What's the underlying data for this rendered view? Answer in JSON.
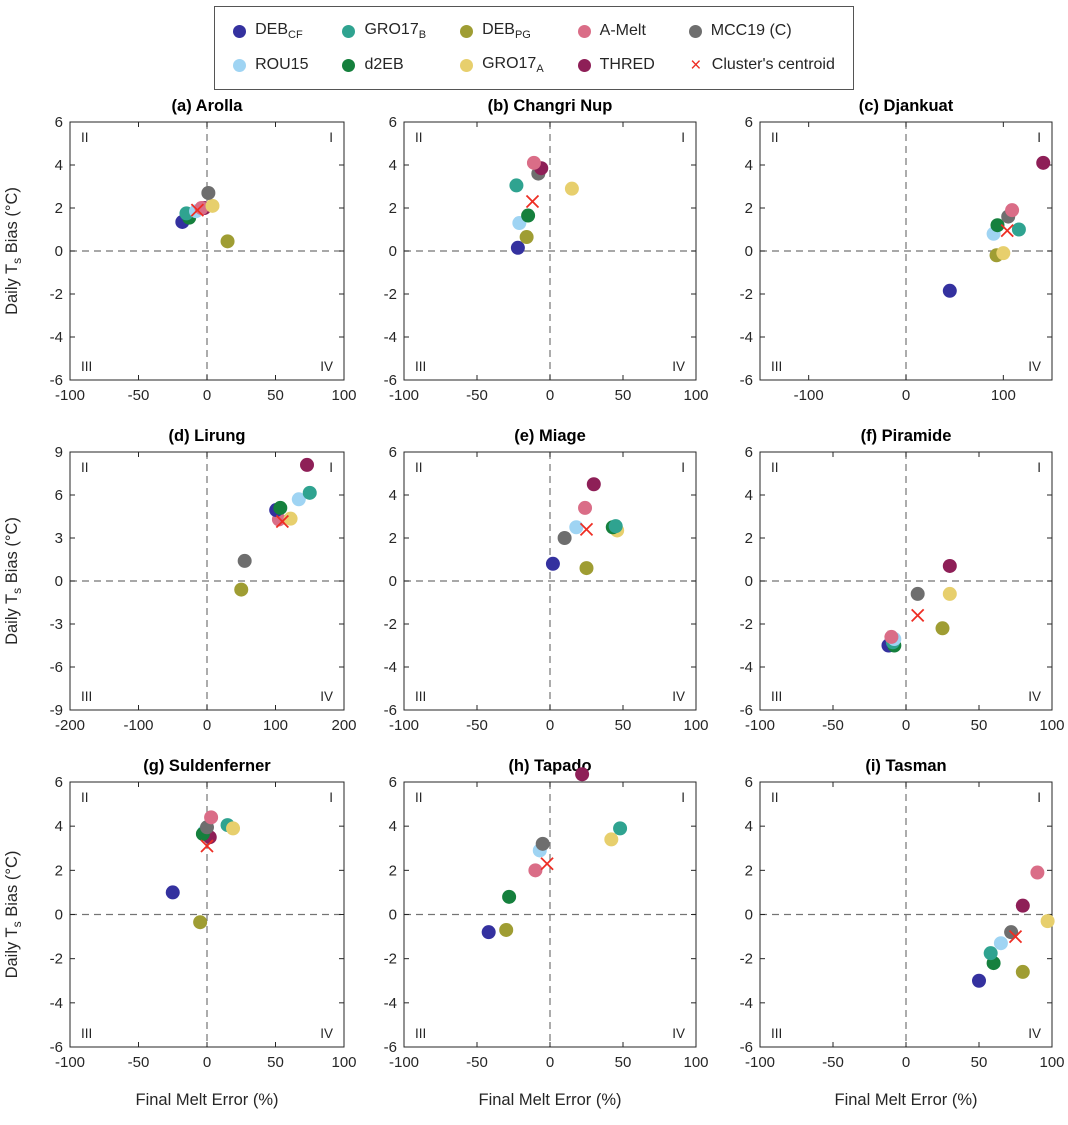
{
  "legend": {
    "items": [
      {
        "id": "DEB_CF",
        "label": "DEB",
        "sub": "CF",
        "color": "#34319f",
        "marker": "dot"
      },
      {
        "id": "ROU15",
        "label": "ROU15",
        "sub": "",
        "color": "#9fd4f3",
        "marker": "dot"
      },
      {
        "id": "GRO17_B",
        "label": "GRO17",
        "sub": "B",
        "color": "#2fa390",
        "marker": "dot"
      },
      {
        "id": "d2EB",
        "label": "d2EB",
        "sub": "",
        "color": "#15803d",
        "marker": "dot"
      },
      {
        "id": "DEB_PG",
        "label": "DEB",
        "sub": "PG",
        "color": "#9f9d33",
        "marker": "dot"
      },
      {
        "id": "GRO17_A",
        "label": "GRO17",
        "sub": "A",
        "color": "#e7cf6d",
        "marker": "dot"
      },
      {
        "id": "A-Melt",
        "label": "A-Melt",
        "sub": "",
        "color": "#da6d87",
        "marker": "dot"
      },
      {
        "id": "THRED",
        "label": "THRED",
        "sub": "",
        "color": "#8e1f57",
        "marker": "dot"
      },
      {
        "id": "MCC19 (C)",
        "label": "MCC19 (C)",
        "sub": "",
        "color": "#6e6e6e",
        "marker": "dot"
      },
      {
        "id": "centroid",
        "label": "Cluster's centroid",
        "sub": "",
        "color": "#ee2e24",
        "marker": "x"
      }
    ]
  },
  "axes": {
    "xlabel": "Final Melt Error (%)",
    "ylabel_parts": [
      "Daily T",
      "s",
      " Bias (°C)"
    ]
  },
  "chart_data": [
    {
      "type": "scatter",
      "title": "(a) Arolla",
      "xlim": [
        -100,
        100
      ],
      "ylim": [
        -6,
        6
      ],
      "xticks": [
        -100,
        -50,
        0,
        50,
        100
      ],
      "yticks": [
        -6,
        -4,
        -2,
        0,
        2,
        4,
        6
      ],
      "quadrant_labels": [
        "II",
        "I",
        "III",
        "IV"
      ],
      "show_ylabel": true,
      "show_xlabel": false,
      "points": [
        {
          "s": "DEB_CF",
          "x": -18,
          "y": 1.35
        },
        {
          "s": "d2EB",
          "x": -13,
          "y": 1.55
        },
        {
          "s": "GRO17_B",
          "x": -15,
          "y": 1.75
        },
        {
          "s": "ROU15",
          "x": -8,
          "y": 1.85
        },
        {
          "s": "THRED",
          "x": -2,
          "y": 2.0
        },
        {
          "s": "A-Melt",
          "x": -4,
          "y": 2.0
        },
        {
          "s": "GRO17_A",
          "x": 4,
          "y": 2.1
        },
        {
          "s": "MCC19 (C)",
          "x": 1,
          "y": 2.7
        },
        {
          "s": "DEB_PG",
          "x": 15,
          "y": 0.45
        }
      ],
      "centroid": {
        "x": -7,
        "y": 1.9
      }
    },
    {
      "type": "scatter",
      "title": "(b) Changri Nup",
      "xlim": [
        -100,
        100
      ],
      "ylim": [
        -6,
        6
      ],
      "xticks": [
        -100,
        -50,
        0,
        50,
        100
      ],
      "yticks": [
        -6,
        -4,
        -2,
        0,
        2,
        4,
        6
      ],
      "quadrant_labels": [
        "II",
        "I",
        "III",
        "IV"
      ],
      "show_ylabel": false,
      "show_xlabel": false,
      "points": [
        {
          "s": "DEB_CF",
          "x": -22,
          "y": 0.15
        },
        {
          "s": "DEB_PG",
          "x": -16,
          "y": 0.65
        },
        {
          "s": "ROU15",
          "x": -21,
          "y": 1.3
        },
        {
          "s": "d2EB",
          "x": -15,
          "y": 1.65
        },
        {
          "s": "GRO17_B",
          "x": -23,
          "y": 3.05
        },
        {
          "s": "MCC19 (C)",
          "x": -8,
          "y": 3.6
        },
        {
          "s": "THRED",
          "x": -6,
          "y": 3.85
        },
        {
          "s": "A-Melt",
          "x": -11,
          "y": 4.1
        },
        {
          "s": "GRO17_A",
          "x": 15,
          "y": 2.9
        }
      ],
      "centroid": {
        "x": -12,
        "y": 2.3
      }
    },
    {
      "type": "scatter",
      "title": "(c) Djankuat",
      "xlim": [
        -150,
        150
      ],
      "ylim": [
        -6,
        6
      ],
      "xticks": [
        -100,
        0,
        100
      ],
      "yticks": [
        -6,
        -4,
        -2,
        0,
        2,
        4,
        6
      ],
      "quadrant_labels": [
        "II",
        "I",
        "III",
        "IV"
      ],
      "show_ylabel": false,
      "show_xlabel": false,
      "points": [
        {
          "s": "DEB_CF",
          "x": 45,
          "y": -1.85
        },
        {
          "s": "DEB_PG",
          "x": 93,
          "y": -0.2
        },
        {
          "s": "GRO17_A",
          "x": 100,
          "y": -0.1
        },
        {
          "s": "ROU15",
          "x": 90,
          "y": 0.8
        },
        {
          "s": "GRO17_B",
          "x": 116,
          "y": 1.0
        },
        {
          "s": "d2EB",
          "x": 94,
          "y": 1.2
        },
        {
          "s": "MCC19 (C)",
          "x": 105,
          "y": 1.6
        },
        {
          "s": "A-Melt",
          "x": 109,
          "y": 1.9
        },
        {
          "s": "THRED",
          "x": 141,
          "y": 4.1
        }
      ],
      "centroid": {
        "x": 104,
        "y": 0.95
      }
    },
    {
      "type": "scatter",
      "title": "(d) Lirung",
      "xlim": [
        -200,
        200
      ],
      "ylim": [
        -9,
        9
      ],
      "xticks": [
        -200,
        -100,
        0,
        100,
        200
      ],
      "yticks": [
        -9,
        -6,
        -3,
        0,
        3,
        6,
        9
      ],
      "quadrant_labels": [
        "II",
        "I",
        "III",
        "IV"
      ],
      "show_ylabel": true,
      "show_xlabel": false,
      "points": [
        {
          "s": "DEB_PG",
          "x": 50,
          "y": -0.6
        },
        {
          "s": "MCC19 (C)",
          "x": 55,
          "y": 1.4
        },
        {
          "s": "A-Melt",
          "x": 105,
          "y": 4.3
        },
        {
          "s": "GRO17_A",
          "x": 122,
          "y": 4.35
        },
        {
          "s": "DEB_CF",
          "x": 101,
          "y": 4.95
        },
        {
          "s": "d2EB",
          "x": 107,
          "y": 5.1
        },
        {
          "s": "ROU15",
          "x": 134,
          "y": 5.7
        },
        {
          "s": "GRO17_B",
          "x": 150,
          "y": 6.15
        },
        {
          "s": "THRED",
          "x": 146,
          "y": 8.1
        }
      ],
      "centroid": {
        "x": 110,
        "y": 4.15
      }
    },
    {
      "type": "scatter",
      "title": "(e) Miage",
      "xlim": [
        -100,
        100
      ],
      "ylim": [
        -6,
        6
      ],
      "xticks": [
        -100,
        -50,
        0,
        50,
        100
      ],
      "yticks": [
        -6,
        -4,
        -2,
        0,
        2,
        4,
        6
      ],
      "quadrant_labels": [
        "II",
        "I",
        "III",
        "IV"
      ],
      "show_ylabel": false,
      "show_xlabel": false,
      "points": [
        {
          "s": "DEB_CF",
          "x": 2,
          "y": 0.8
        },
        {
          "s": "DEB_PG",
          "x": 25,
          "y": 0.6
        },
        {
          "s": "MCC19 (C)",
          "x": 10,
          "y": 2.0
        },
        {
          "s": "GRO17_A",
          "x": 46,
          "y": 2.35
        },
        {
          "s": "d2EB",
          "x": 43,
          "y": 2.5
        },
        {
          "s": "GRO17_B",
          "x": 45,
          "y": 2.55
        },
        {
          "s": "ROU15",
          "x": 18,
          "y": 2.5
        },
        {
          "s": "A-Melt",
          "x": 24,
          "y": 3.4
        },
        {
          "s": "THRED",
          "x": 30,
          "y": 4.5
        }
      ],
      "centroid": {
        "x": 25,
        "y": 2.4
      }
    },
    {
      "type": "scatter",
      "title": "(f) Piramide",
      "xlim": [
        -100,
        100
      ],
      "ylim": [
        -6,
        6
      ],
      "xticks": [
        -100,
        -50,
        0,
        50,
        100
      ],
      "yticks": [
        -6,
        -4,
        -2,
        0,
        2,
        4,
        6
      ],
      "quadrant_labels": [
        "II",
        "I",
        "III",
        "IV"
      ],
      "show_ylabel": false,
      "show_xlabel": false,
      "points": [
        {
          "s": "DEB_CF",
          "x": -12,
          "y": -3.0
        },
        {
          "s": "d2EB",
          "x": -8,
          "y": -3.0
        },
        {
          "s": "GRO17_B",
          "x": -9,
          "y": -2.85
        },
        {
          "s": "ROU15",
          "x": -8,
          "y": -2.7
        },
        {
          "s": "A-Melt",
          "x": -10,
          "y": -2.6
        },
        {
          "s": "DEB_PG",
          "x": 25,
          "y": -2.2
        },
        {
          "s": "MCC19 (C)",
          "x": 8,
          "y": -0.6
        },
        {
          "s": "GRO17_A",
          "x": 30,
          "y": -0.6
        },
        {
          "s": "THRED",
          "x": 30,
          "y": 0.7
        }
      ],
      "centroid": {
        "x": 8,
        "y": -1.6
      }
    },
    {
      "type": "scatter",
      "title": "(g) Suldenferner",
      "xlim": [
        -100,
        100
      ],
      "ylim": [
        -6,
        6
      ],
      "xticks": [
        -100,
        -50,
        0,
        50,
        100
      ],
      "yticks": [
        -6,
        -4,
        -2,
        0,
        2,
        4,
        6
      ],
      "quadrant_labels": [
        "II",
        "I",
        "III",
        "IV"
      ],
      "show_ylabel": true,
      "show_xlabel": true,
      "points": [
        {
          "s": "DEB_PG",
          "x": -5,
          "y": -0.35
        },
        {
          "s": "DEB_CF",
          "x": -25,
          "y": 1.0
        },
        {
          "s": "ROU15",
          "x": -2,
          "y": 3.75
        },
        {
          "s": "THRED",
          "x": 2,
          "y": 3.5
        },
        {
          "s": "d2EB",
          "x": -3,
          "y": 3.65
        },
        {
          "s": "MCC19 (C)",
          "x": 0,
          "y": 3.95
        },
        {
          "s": "GRO17_B",
          "x": 15,
          "y": 4.05
        },
        {
          "s": "GRO17_A",
          "x": 19,
          "y": 3.9
        },
        {
          "s": "A-Melt",
          "x": 3,
          "y": 4.4
        }
      ],
      "centroid": {
        "x": 0,
        "y": 3.1
      }
    },
    {
      "type": "scatter",
      "title": "(h) Tapado",
      "xlim": [
        -100,
        100
      ],
      "ylim": [
        -6,
        6
      ],
      "xticks": [
        -100,
        -50,
        0,
        50,
        100
      ],
      "yticks": [
        -6,
        -4,
        -2,
        0,
        2,
        4,
        6
      ],
      "quadrant_labels": [
        "II",
        "I",
        "III",
        "IV"
      ],
      "show_ylabel": false,
      "show_xlabel": true,
      "points": [
        {
          "s": "DEB_CF",
          "x": -42,
          "y": -0.8
        },
        {
          "s": "DEB_PG",
          "x": -30,
          "y": -0.7
        },
        {
          "s": "d2EB",
          "x": -28,
          "y": 0.8
        },
        {
          "s": "A-Melt",
          "x": -10,
          "y": 2.0
        },
        {
          "s": "ROU15",
          "x": -7,
          "y": 2.9
        },
        {
          "s": "MCC19 (C)",
          "x": -5,
          "y": 3.2
        },
        {
          "s": "GRO17_A",
          "x": 42,
          "y": 3.4
        },
        {
          "s": "GRO17_B",
          "x": 48,
          "y": 3.9
        },
        {
          "s": "THRED",
          "x": 22,
          "y": 6.35
        }
      ],
      "centroid": {
        "x": -2,
        "y": 2.3
      }
    },
    {
      "type": "scatter",
      "title": "(i) Tasman",
      "xlim": [
        -100,
        100
      ],
      "ylim": [
        -6,
        6
      ],
      "xticks": [
        -100,
        -50,
        0,
        50,
        100
      ],
      "yticks": [
        -6,
        -4,
        -2,
        0,
        2,
        4,
        6
      ],
      "quadrant_labels": [
        "II",
        "I",
        "III",
        "IV"
      ],
      "show_ylabel": false,
      "show_xlabel": true,
      "points": [
        {
          "s": "DEB_CF",
          "x": 50,
          "y": -3.0
        },
        {
          "s": "DEB_PG",
          "x": 80,
          "y": -2.6
        },
        {
          "s": "d2EB",
          "x": 60,
          "y": -2.2
        },
        {
          "s": "GRO17_B",
          "x": 58,
          "y": -1.75
        },
        {
          "s": "ROU15",
          "x": 65,
          "y": -1.3
        },
        {
          "s": "MCC19 (C)",
          "x": 72,
          "y": -0.8
        },
        {
          "s": "GRO17_A",
          "x": 97,
          "y": -0.3
        },
        {
          "s": "THRED",
          "x": 80,
          "y": 0.4
        },
        {
          "s": "A-Melt",
          "x": 90,
          "y": 1.9
        }
      ],
      "centroid": {
        "x": 75,
        "y": -1.0
      }
    }
  ]
}
